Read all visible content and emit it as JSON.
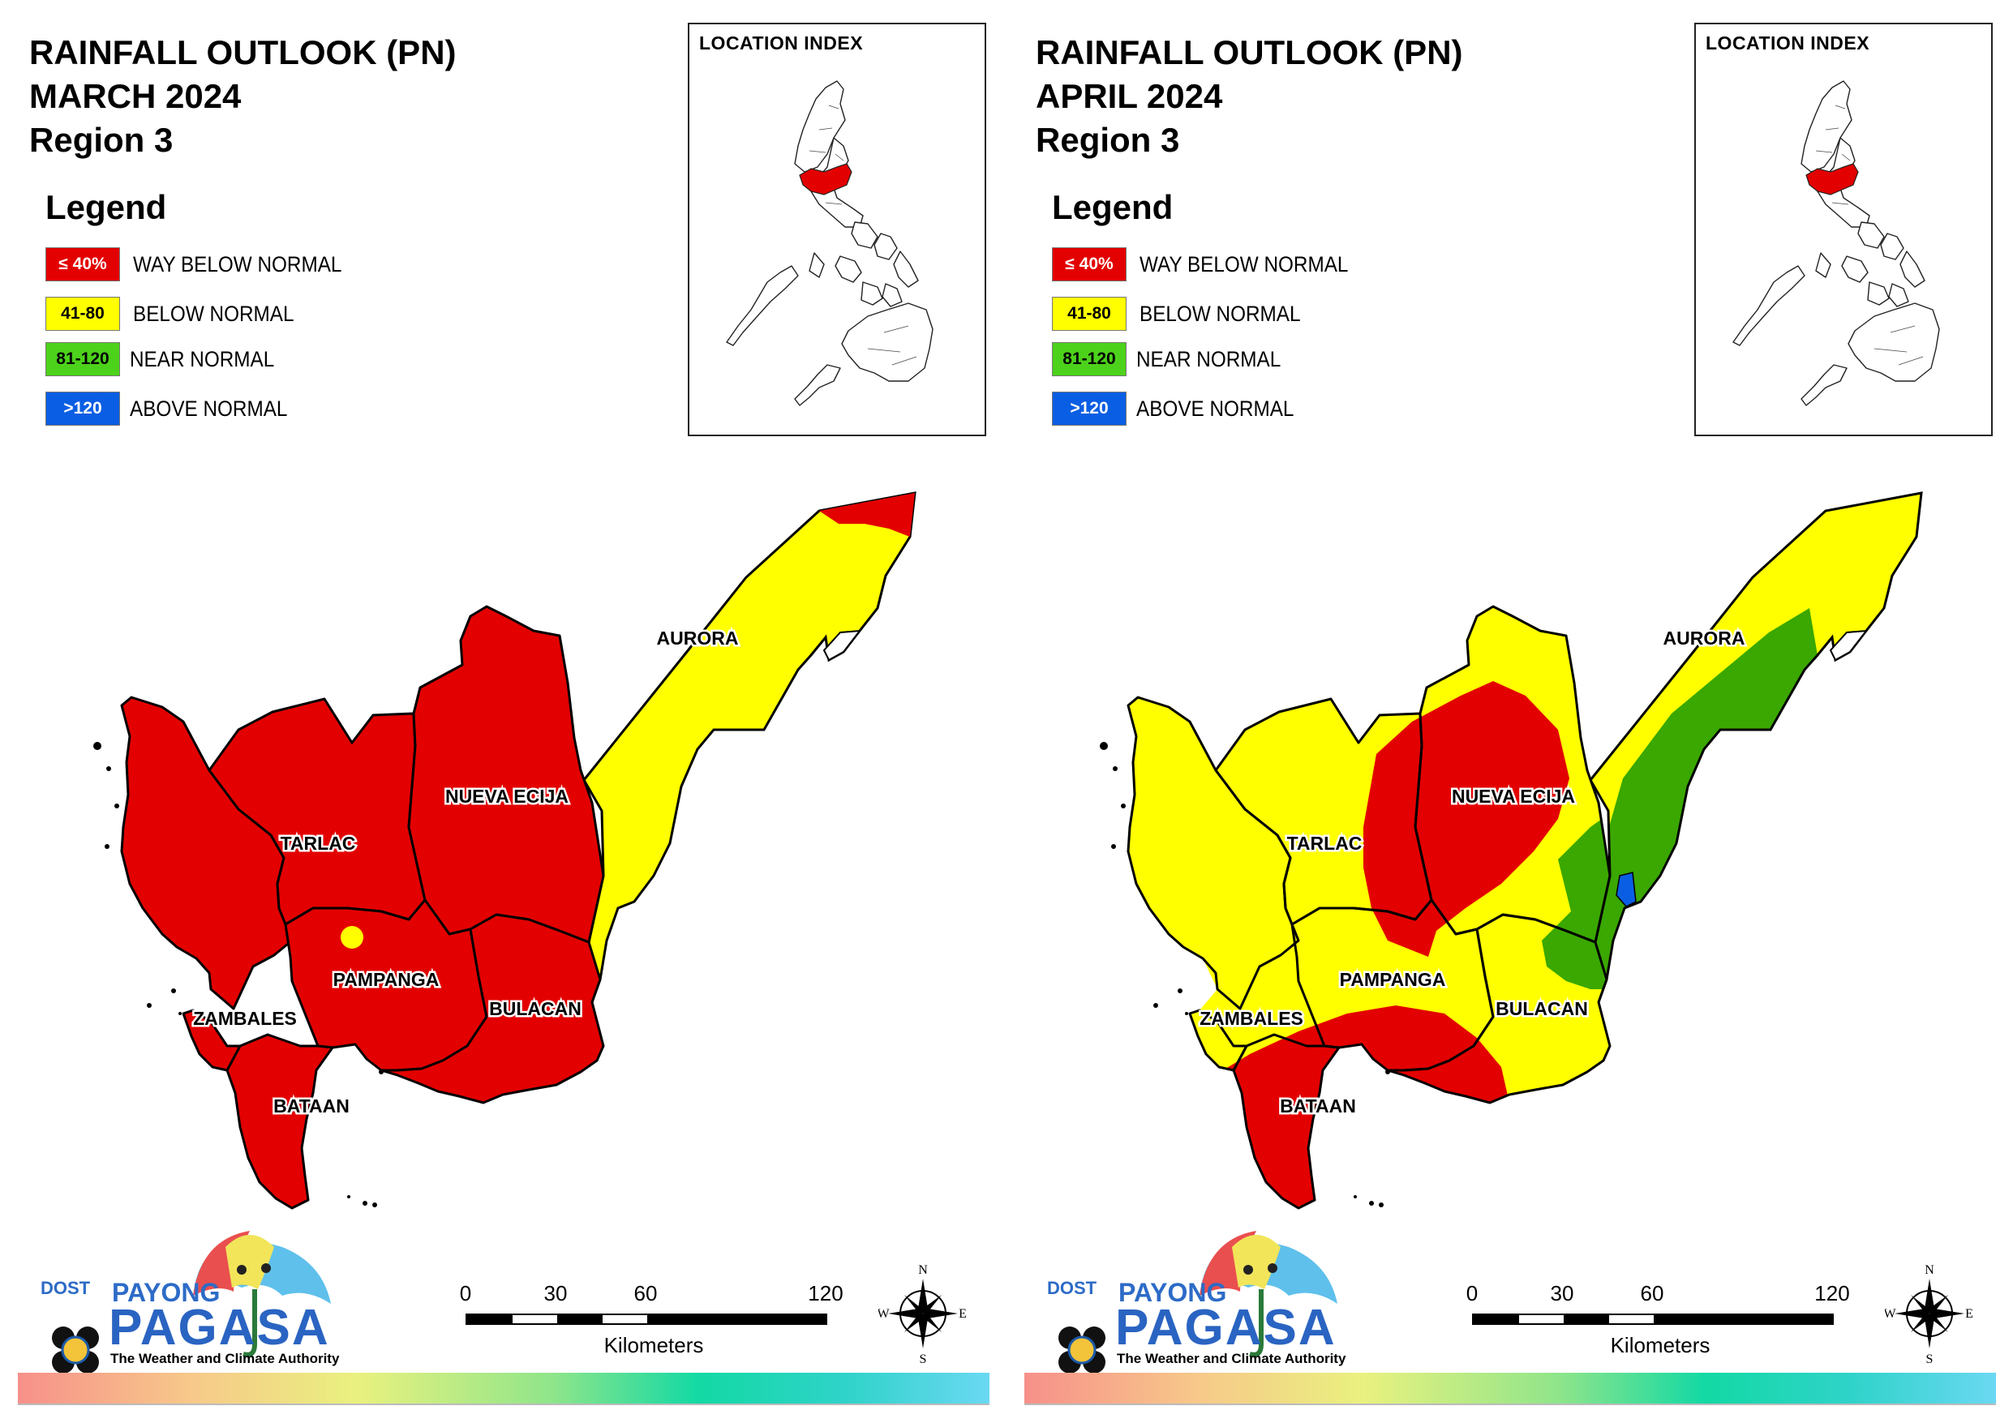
{
  "panels": [
    {
      "title_line1": "RAINFALL OUTLOOK (PN)",
      "title_line2": "MARCH 2024",
      "title_line3": "Region 3",
      "legend_heading": "Legend",
      "legend": [
        {
          "swatch": "≤ 40%",
          "label": "WAY BELOW NORMAL",
          "color": "#e30000"
        },
        {
          "swatch": "41-80",
          "label": "BELOW NORMAL",
          "color": "#ffff00"
        },
        {
          "swatch": "81-120",
          "label": "NEAR NORMAL",
          "color": "#4dd21b"
        },
        {
          "swatch": ">120",
          "label": "ABOVE NORMAL",
          "color": "#0a5ee3"
        }
      ],
      "inset_title": "LOCATION INDEX",
      "provinces": {
        "aurora": "AURORA",
        "nueva_ecija": "NUEVA ECIJA",
        "tarlac": "TARLAC",
        "pampanga": "PAMPANGA",
        "bulacan": "BULACAN",
        "zambales": "ZAMBALES",
        "bataan": "BATAAN"
      },
      "scale": {
        "ticks": [
          "0",
          "30",
          "60",
          "120"
        ],
        "unit": "Kilometers"
      },
      "compass": {
        "n": "N",
        "e": "E",
        "s": "S",
        "w": "W"
      },
      "logo": {
        "dost": "DOST",
        "payong": "PAYONG",
        "pagasa": "PAGASA",
        "tagline": "The Weather and Climate Authority"
      }
    },
    {
      "title_line1": "RAINFALL OUTLOOK (PN)",
      "title_line2": "APRIL 2024",
      "title_line3": "Region 3",
      "legend_heading": "Legend",
      "legend": [
        {
          "swatch": "≤ 40%",
          "label": "WAY BELOW NORMAL",
          "color": "#e30000"
        },
        {
          "swatch": "41-80",
          "label": "BELOW NORMAL",
          "color": "#ffff00"
        },
        {
          "swatch": "81-120",
          "label": "NEAR NORMAL",
          "color": "#4dd21b"
        },
        {
          "swatch": ">120",
          "label": "ABOVE NORMAL",
          "color": "#0a5ee3"
        }
      ],
      "inset_title": "LOCATION INDEX",
      "provinces": {
        "aurora": "AURORA",
        "nueva_ecija": "NUEVA ECIJA",
        "tarlac": "TARLAC",
        "pampanga": "PAMPANGA",
        "bulacan": "BULACAN",
        "zambales": "ZAMBALES",
        "bataan": "BATAAN"
      },
      "scale": {
        "ticks": [
          "0",
          "30",
          "60",
          "120"
        ],
        "unit": "Kilometers"
      },
      "compass": {
        "n": "N",
        "e": "E",
        "s": "S",
        "w": "W"
      },
      "logo": {
        "dost": "DOST",
        "payong": "PAYONG",
        "pagasa": "PAGASA",
        "tagline": "The Weather and Climate Authority"
      }
    }
  ],
  "colors": {
    "way_below_normal": "#e30000",
    "below_normal": "#ffff00",
    "near_normal": "#3aa800",
    "above_normal": "#0a5ee3"
  }
}
